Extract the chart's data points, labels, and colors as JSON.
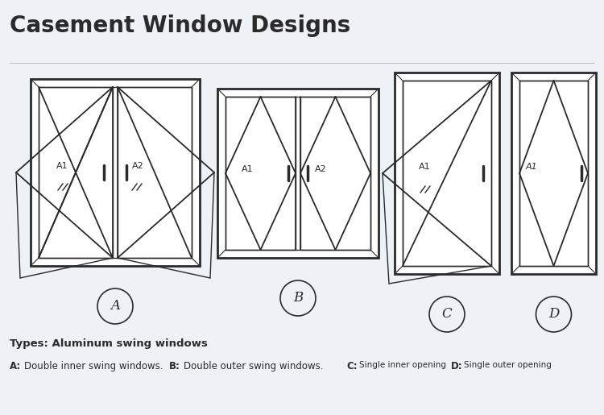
{
  "title": "Casement Window Designs",
  "title_fontsize": 20,
  "title_fontweight": "bold",
  "background_color": "#eef2f7",
  "line_color": "#2a2a2a",
  "label_color": "#2a2a2a",
  "types_header": "Types: Aluminum swing windows",
  "window_labels": [
    "A",
    "B",
    "C",
    "D"
  ]
}
